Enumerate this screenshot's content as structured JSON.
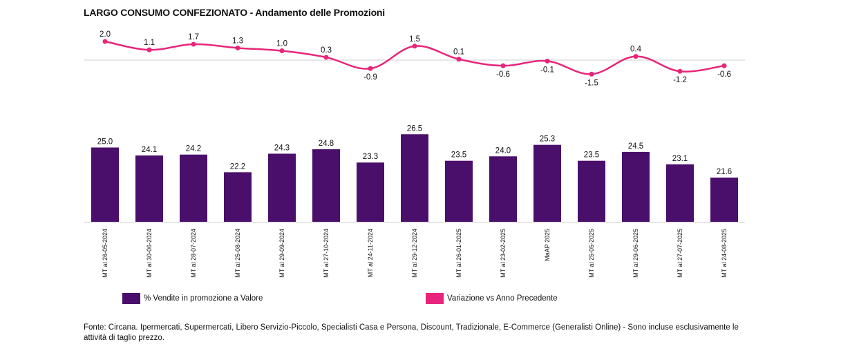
{
  "title": "LARGO CONSUMO CONFEZIONATO - Andamento delle Promozioni",
  "colors": {
    "bar": "#4a0f6b",
    "line": "#e8257a",
    "baseline": "#cccccc"
  },
  "chart_data": {
    "type": "bar",
    "categories": [
      "MT al 26-05-2024",
      "MT al 30-06-2024",
      "MT al 28-07-2024",
      "MT al 25-08-2024",
      "MT al 29-09-2024",
      "MT al 27-10-2024",
      "MT al 24-11-2024",
      "MT al 29-12-2024",
      "MT al 26-01-2025",
      "MT al 23-02-2025",
      "MaAP 2025",
      "MT al 25-05-2025",
      "MT al 29-06-2025",
      "MT al 27-07-2025",
      "MT al 24-08-2025"
    ],
    "series": [
      {
        "name": "% Vendite in promozione a Valore",
        "type": "bar",
        "values": [
          25.0,
          24.1,
          24.2,
          22.2,
          24.3,
          24.8,
          23.3,
          26.5,
          23.5,
          24.0,
          25.3,
          23.5,
          24.5,
          23.1,
          21.6
        ],
        "labels": [
          "25.0",
          "24.1",
          "24.2",
          "22.2",
          "24.3",
          "24.8",
          "23.3",
          "26.5",
          "23.5",
          "24.0",
          "25.3",
          "23.5",
          "24.5",
          "23.1",
          "21.6"
        ]
      },
      {
        "name": "Variazione vs Anno Precedente",
        "type": "line",
        "values": [
          2.0,
          1.1,
          1.7,
          1.3,
          1.0,
          0.3,
          -0.9,
          1.5,
          0.1,
          -0.6,
          -0.1,
          -1.5,
          0.4,
          -1.2,
          -0.6
        ],
        "labels": [
          "2.0",
          "1.1",
          "1.7",
          "1.3",
          "1.0",
          "0.3",
          "-0.9",
          "1.5",
          "0.1",
          "-0.6",
          "-0.1",
          "-1.5",
          "0.4",
          "-1.2",
          "-0.6"
        ]
      }
    ],
    "legend_position": "bottom",
    "grid": false
  },
  "legend": [
    "% Vendite in promozione a Valore",
    "Variazione vs Anno Precedente"
  ],
  "source": "Fonte: Circana. Ipermercati, Supermercati, Libero Servizio-Piccolo, Specialisti Casa e Persona, Discount, Tradizionale, E-Commerce (Generalisti Online) - Sono incluse esclusivamente le attività di taglio prezzo."
}
